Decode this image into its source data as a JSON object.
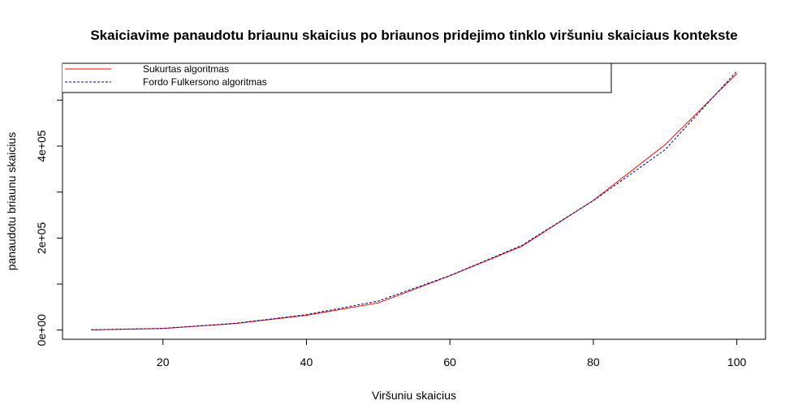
{
  "chart_data": {
    "type": "line",
    "title": "Skaiciavime panaudotu briaunu skaicius po briaunos pridejimo tinklo viršuniu skaiciaus kontekste",
    "xlabel": "Viršuniu skaicius",
    "ylabel": "panaudotu briaunu skaicius",
    "x": [
      10,
      20,
      30,
      40,
      50,
      60,
      70,
      80,
      90,
      100
    ],
    "xlim": [
      6,
      104
    ],
    "ylim": [
      -20000,
      580000
    ],
    "x_ticks": [
      20,
      40,
      60,
      80,
      100
    ],
    "x_tick_labels": [
      "20",
      "40",
      "60",
      "80",
      "100"
    ],
    "y_ticks": [
      0,
      100000,
      200000,
      300000,
      400000,
      500000
    ],
    "y_tick_labels": [
      "0e+00",
      "",
      "2e+05",
      "",
      "4e+05",
      ""
    ],
    "grid": false,
    "legend_position": "top-left",
    "series": [
      {
        "name": "Sukurtas algoritmas",
        "color": "#ff0000",
        "dash": "solid",
        "values": [
          500,
          3500,
          14000,
          32000,
          59000,
          118000,
          182000,
          282000,
          403000,
          558000
        ]
      },
      {
        "name": "Fordo Fulkersono algoritmas",
        "color": "#00008b",
        "dash": "dashed",
        "values": [
          600,
          3600,
          14500,
          33500,
          63000,
          118500,
          184000,
          281500,
          392000,
          563000
        ]
      }
    ]
  }
}
